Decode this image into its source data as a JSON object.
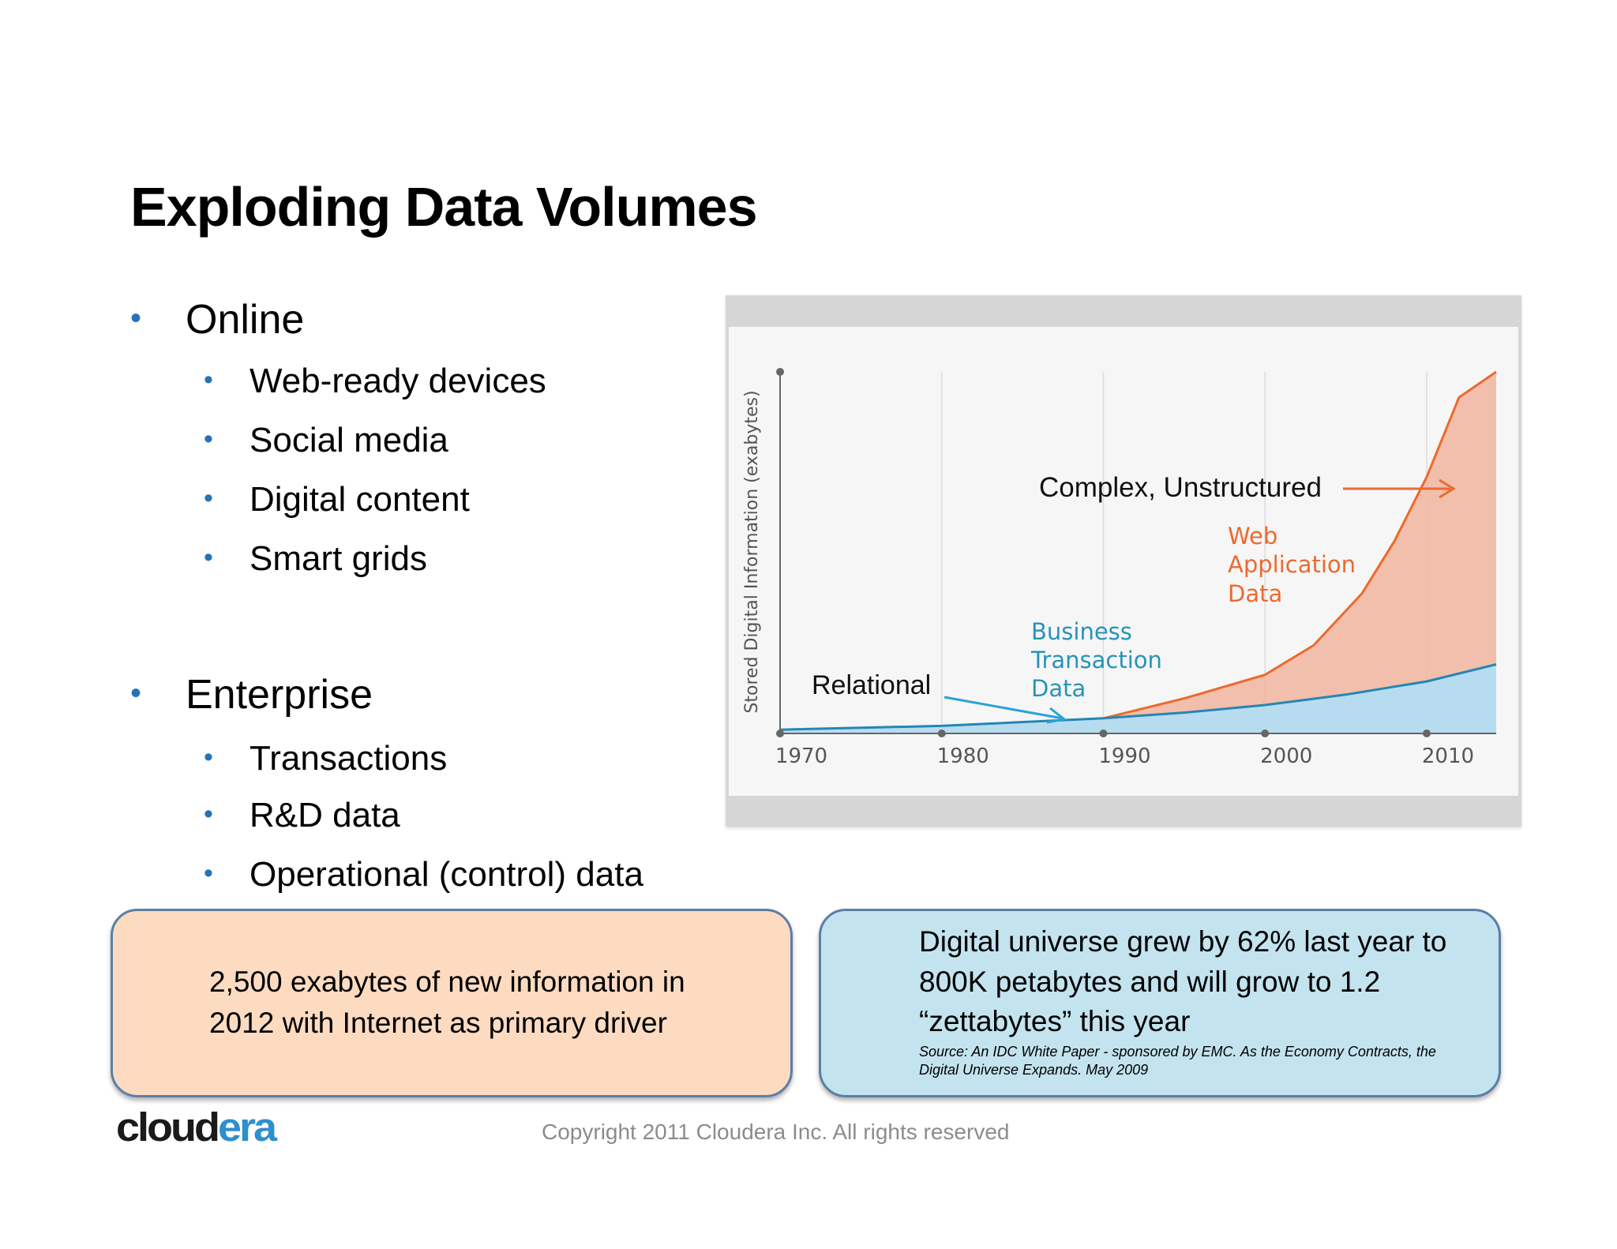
{
  "slide": {
    "title": "Exploding Data Volumes",
    "sections": [
      {
        "label": "Online",
        "items": [
          "Web-ready devices",
          "Social media",
          "Digital content",
          "Smart grids"
        ]
      },
      {
        "label": "Enterprise",
        "items": [
          "Transactions",
          "R&D data",
          "Operational (control) data"
        ]
      }
    ]
  },
  "chart_data": {
    "type": "area",
    "ylabel": "Stored Digital Information (exabytes)",
    "xlabel": "",
    "x_ticks": [
      "1970",
      "1980",
      "1990",
      "2000",
      "2010"
    ],
    "xlim": [
      1970,
      2014.3
    ],
    "grid": true,
    "series": [
      {
        "name": "Business Transaction Data",
        "color": "#2d8fcd",
        "x": [
          1970,
          1980,
          1990,
          1995,
          2000,
          2005,
          2010,
          2014.3
        ],
        "y": [
          0.04,
          0.08,
          0.16,
          0.22,
          0.3,
          0.41,
          0.55,
          0.73
        ]
      },
      {
        "name": "Web Application Data",
        "color": "#ec6a2e",
        "x": [
          1990,
          1995,
          2000,
          2003,
          2006,
          2008,
          2010,
          2012,
          2014.3
        ],
        "y": [
          0.16,
          0.37,
          0.62,
          0.93,
          1.48,
          2.03,
          2.71,
          3.55,
          3.82
        ]
      }
    ],
    "annotations": {
      "complex": "Complex, Unstructured",
      "relational": "Relational",
      "web_lines": [
        "Web",
        "Application",
        "Data"
      ],
      "business_lines": [
        "Business",
        "Transaction",
        "Data"
      ]
    }
  },
  "callouts": {
    "orange_lines": [
      "2,500 exabytes of new information in",
      "2012 with Internet as primary driver"
    ],
    "blue_lines": [
      "Digital universe grew by 62% last year to",
      "800K petabytes and will grow to 1.2",
      "“zettabytes” this year"
    ],
    "source_lines": [
      "Source: An IDC White Paper - sponsored by EMC. As the Economy Contracts, the",
      "Digital Universe Expands. May 2009"
    ]
  },
  "footer": {
    "logo_part1": "cloud",
    "logo_part2": "era",
    "copyright": "Copyright 2011 Cloudera Inc. All rights reserved"
  },
  "colors": {
    "bullet": "#2672b6",
    "orange": "#ec6a2e",
    "blue": "#2d8fcd",
    "teal_text": "#2694b8"
  }
}
